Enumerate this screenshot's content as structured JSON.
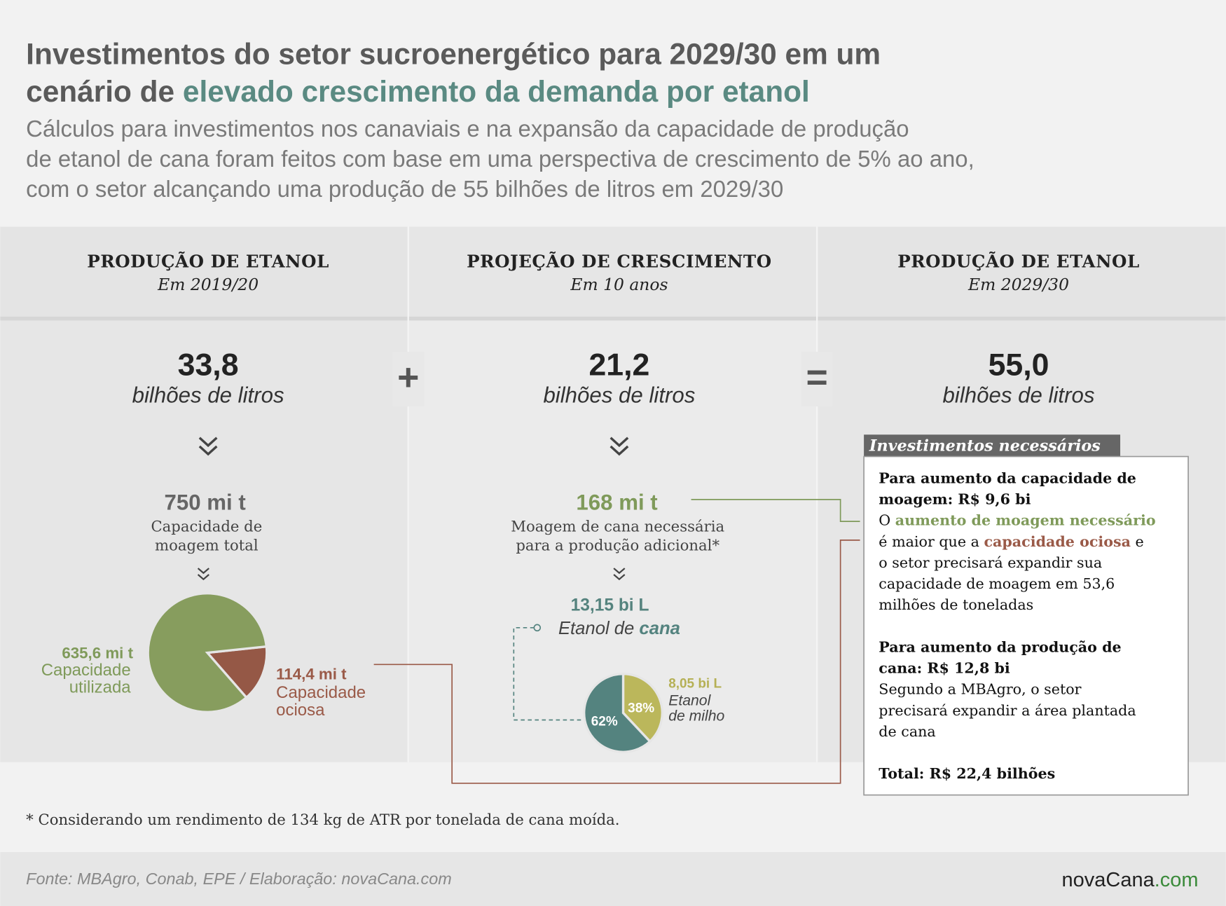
{
  "header": {
    "title_lines": [
      [
        {
          "text": "Investimentos do setor sucroenergético para 2029/30 em um"
        }
      ],
      [
        {
          "text": "cenário de "
        },
        {
          "text": "elevado crescimento da demanda por etanol",
          "color": "#5a8a82"
        }
      ]
    ],
    "subtitle_lines": [
      "Cálculos para investimentos nos canaviais e na expansão da capacidade de produção",
      "de etanol de cana foram feitos com base em uma perspectiva de crescimento de 5% ao ano,",
      "com o setor alcançando uma produção de 55 bilhões de litros em 2029/30"
    ]
  },
  "columns": [
    {
      "heading": "PRODUÇÃO DE ETANOL",
      "period": "Em 2019/20",
      "value": "33,8",
      "unit": "bilhões de litros"
    },
    {
      "heading": "PROJEÇÃO DE CRESCIMENTO",
      "period": "Em 10 anos",
      "value": "21,2",
      "unit": "bilhões de litros"
    },
    {
      "heading": "PRODUÇÃO DE ETANOL",
      "period": "Em 2029/30",
      "value": "55,0",
      "unit": "bilhões de litros"
    }
  ],
  "operators": [
    "+",
    "="
  ],
  "capacity": {
    "value": "750 mi t",
    "label_lines": [
      "Capacidade de",
      "moagem total"
    ]
  },
  "capacity_pie": {
    "values": [
      114.4,
      635.6
    ],
    "value_labels": [
      "114,4 mi t",
      "635,6 mi t"
    ],
    "labels": [
      [
        "Capacidade",
        "ociosa"
      ],
      [
        "Capacidade",
        "utilizada"
      ]
    ],
    "colors": [
      "#955846",
      "#879d5e"
    ]
  },
  "crushing": {
    "value": "168 mi t",
    "label_lines": [
      "Moagem de cana necessária",
      "para a produção adicional*"
    ]
  },
  "ethanol_pie": {
    "top_label": "13,15 bi L",
    "cane_label": [
      "Etanol de ",
      "cana"
    ],
    "values": [
      38,
      62
    ],
    "value_labels": [
      "38%",
      "62%"
    ],
    "colors": [
      "#bbb75b",
      "#54837f"
    ],
    "corn_value": "8,05 bi L",
    "corn_label": [
      "Etanol",
      "de milho"
    ]
  },
  "investments": {
    "tab": "Investimentos necessários",
    "blocks": [
      {
        "heading_lines": [
          "Para aumento da capacidade de",
          "moagem: R$ 9,6 bi"
        ],
        "body_lines": [
          [
            {
              "text": "O "
            },
            {
              "text": "aumento de moagem necessário",
              "color": "#7f9a5a"
            }
          ],
          [
            {
              "text": "é maior que a "
            },
            {
              "text": "capacidade ociosa",
              "color": "#9a5a48"
            },
            {
              "text": " e"
            }
          ],
          [
            {
              "text": "o setor precisará expandir sua"
            }
          ],
          [
            {
              "text": "capacidade de moagem em 53,6"
            }
          ],
          [
            {
              "text": "milhões de toneladas"
            }
          ]
        ]
      },
      {
        "heading_lines": [
          "Para aumento da produção de",
          "cana: R$ 12,8 bi"
        ],
        "body_lines": [
          [
            {
              "text": "Segundo a MBAgro, o setor"
            }
          ],
          [
            {
              "text": "precisará expandir a área plantada"
            }
          ],
          [
            {
              "text": "de cana"
            }
          ]
        ]
      },
      {
        "heading_lines": [
          "Total: R$ 22,4 bilhões"
        ],
        "body_lines": []
      }
    ]
  },
  "footnote": "* Considerando um rendimento de 134 kg de ATR por tonelada de cana moída.",
  "source": "Fonte: MBAgro, Conab, EPE / Elaboração: novaCana.com",
  "brand": [
    {
      "text": "novaCana"
    },
    {
      "text": ".com",
      "color": "#3a8a3a"
    }
  ]
}
